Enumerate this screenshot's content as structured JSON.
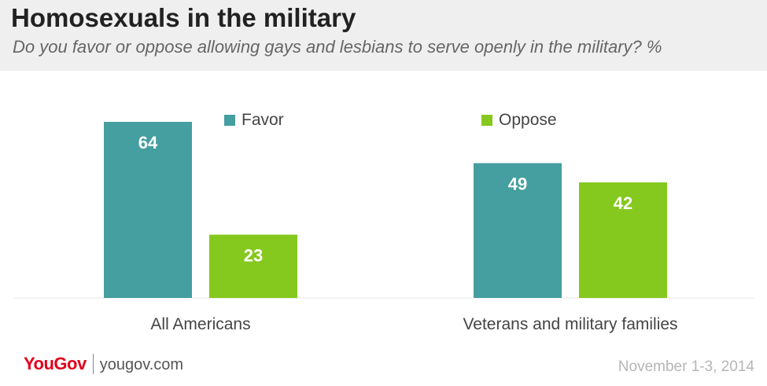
{
  "chart_data": {
    "type": "bar",
    "title": "Homosexuals in the military",
    "subtitle": "Do you favor or oppose allowing gays and lesbians to serve openly in the military? %",
    "categories": [
      "All Americans",
      "Veterans and military families"
    ],
    "series": [
      {
        "name": "Favor",
        "values": [
          64,
          49
        ],
        "color": "#459e9f"
      },
      {
        "name": "Oppose",
        "values": [
          23,
          42
        ],
        "color": "#85c81e"
      }
    ],
    "ylim": [
      0,
      70
    ],
    "grid": false,
    "legend": "top"
  },
  "footer": {
    "logo": "YouGov",
    "url": "yougov.com",
    "date": "November 1-3, 2014"
  },
  "colors": {
    "header_bg": "#efefef",
    "title": "#222222",
    "logo_red": "#e2001a"
  }
}
